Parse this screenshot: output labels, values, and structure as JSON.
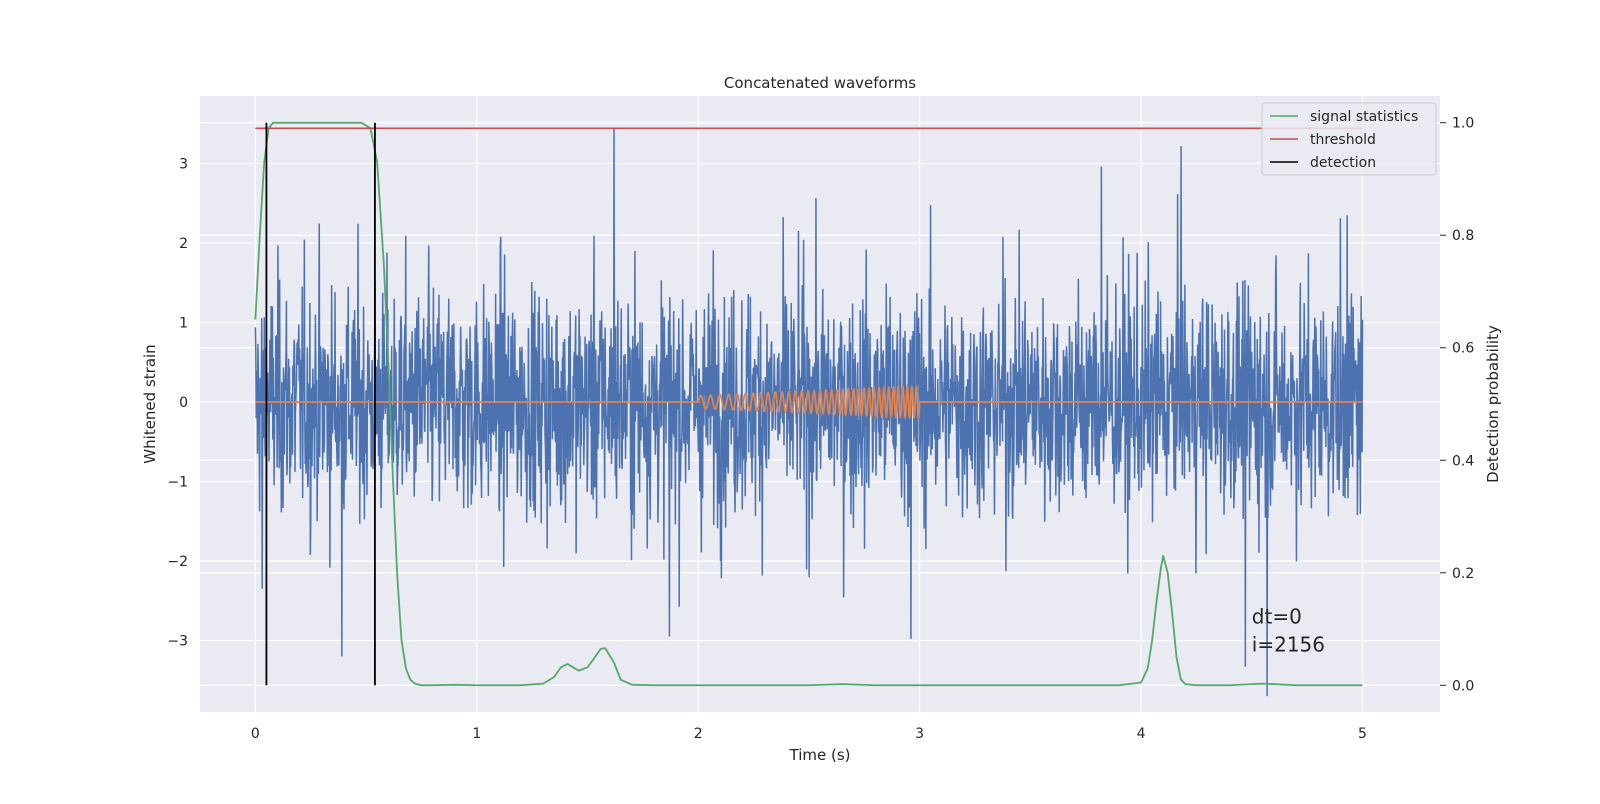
{
  "chart_data": {
    "type": "line",
    "title": "Concatenated waveforms",
    "xlabel": "Time (s)",
    "ylabel": "Whitened strain",
    "y2label": "Detection probability",
    "xlim": [
      -0.25,
      5.35
    ],
    "ylim": [
      -3.9,
      3.85
    ],
    "y2lim": [
      -0.0475,
      1.0475
    ],
    "xticks": [
      0,
      1,
      2,
      3,
      4,
      5
    ],
    "yticks": [
      -3,
      -2,
      -1,
      0,
      1,
      2,
      3
    ],
    "y2ticks": [
      0.0,
      0.2,
      0.4,
      0.6,
      0.8,
      1.0
    ],
    "xtick_labels": [
      "0",
      "1",
      "2",
      "3",
      "4",
      "5"
    ],
    "ytick_labels": [
      "−3",
      "−2",
      "−1",
      "0",
      "1",
      "2",
      "3"
    ],
    "y2tick_labels": [
      "0.0",
      "0.2",
      "0.4",
      "0.6",
      "0.8",
      "1.0"
    ],
    "grid": true,
    "legend_position": "top-right",
    "colors": {
      "plot_bg": "#eaeaf2",
      "grid": "#ffffff",
      "strain": "#4c72b0",
      "template": "#dd8452",
      "signal": "#55a868",
      "threshold": "#c44e52",
      "detection": "#000000"
    },
    "series": [
      {
        "name": "",
        "axis": "left",
        "kind": "noise",
        "x_range": [
          0,
          5
        ],
        "amplitude_envelope": [
          -3.7,
          3.5
        ],
        "sample_peaks": [
          {
            "x": 1.62,
            "y": 3.45
          },
          {
            "x": 0.03,
            "y": -2.35
          },
          {
            "x": 0.39,
            "y": -3.2
          },
          {
            "x": 1.87,
            "y": -2.95
          },
          {
            "x": 2.96,
            "y": -2.98
          },
          {
            "x": 4.57,
            "y": -3.7
          },
          {
            "x": 4.47,
            "y": -3.33
          },
          {
            "x": 3.82,
            "y": 2.96
          },
          {
            "x": 4.18,
            "y": 3.22
          },
          {
            "x": 4.93,
            "y": 2.35
          }
        ]
      },
      {
        "name": "",
        "axis": "left",
        "kind": "chirp",
        "x": [
          0,
          2,
          3,
          5
        ],
        "y": [
          0,
          0,
          0,
          0
        ],
        "chirp_start": 2.0,
        "chirp_end": 3.0,
        "amplitude_start": 0.08,
        "amplitude_end": 0.2,
        "cycles": 36
      },
      {
        "name": "signal statistics",
        "axis": "right",
        "x": [
          0.0,
          0.02,
          0.04,
          0.06,
          0.08,
          0.1,
          0.15,
          0.2,
          0.3,
          0.4,
          0.48,
          0.52,
          0.55,
          0.58,
          0.6,
          0.62,
          0.64,
          0.66,
          0.68,
          0.7,
          0.72,
          0.75,
          0.8,
          0.9,
          1.0,
          1.2,
          1.3,
          1.35,
          1.38,
          1.41,
          1.43,
          1.46,
          1.5,
          1.53,
          1.56,
          1.58,
          1.62,
          1.65,
          1.7,
          1.8,
          2.0,
          2.5,
          2.65,
          2.8,
          3.0,
          3.5,
          3.9,
          4.0,
          4.03,
          4.05,
          4.07,
          4.09,
          4.1,
          4.12,
          4.14,
          4.16,
          4.18,
          4.2,
          4.25,
          4.4,
          4.55,
          4.7,
          5.0
        ],
        "y": [
          0.65,
          0.8,
          0.93,
          0.99,
          1.0,
          1.0,
          1.0,
          1.0,
          1.0,
          1.0,
          1.0,
          0.99,
          0.93,
          0.75,
          0.58,
          0.38,
          0.2,
          0.08,
          0.03,
          0.01,
          0.003,
          0.0,
          0.0,
          0.001,
          0.0,
          0.0,
          0.003,
          0.015,
          0.032,
          0.038,
          0.033,
          0.026,
          0.032,
          0.048,
          0.065,
          0.066,
          0.04,
          0.01,
          0.001,
          0.0,
          0.0,
          0.0,
          0.002,
          0.0,
          0.0,
          0.0,
          0.0,
          0.005,
          0.03,
          0.08,
          0.15,
          0.21,
          0.23,
          0.2,
          0.13,
          0.05,
          0.01,
          0.002,
          0.0,
          0.0,
          0.003,
          0.0,
          0.0
        ]
      },
      {
        "name": "threshold",
        "axis": "right",
        "x": [
          0,
          5
        ],
        "y": [
          0.99,
          0.99
        ]
      },
      {
        "name": "detection",
        "axis": "right",
        "vlines": [
          0.05,
          0.54
        ],
        "ymin": 0.0,
        "ymax": 1.0
      }
    ],
    "legend": [
      "signal statistics",
      "threshold",
      "detection"
    ],
    "annotations": [
      {
        "text": "dt=0",
        "x": 4.5,
        "y": 0.11
      },
      {
        "text": "i=2156",
        "x": 4.5,
        "y": 0.06
      }
    ]
  }
}
